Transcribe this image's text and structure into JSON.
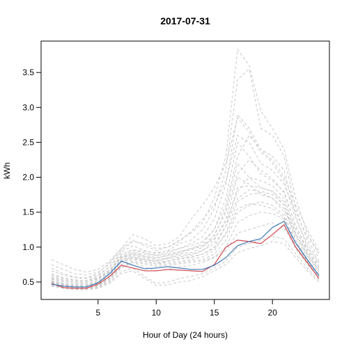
{
  "chart_data": {
    "type": "line",
    "title": "2017-07-31",
    "xlabel": "Hour of Day (24 hours)",
    "ylabel": "kWh",
    "xlim": [
      0.1,
      24.9
    ],
    "ylim": [
      0.25,
      3.95
    ],
    "x_ticks": [
      5,
      10,
      15,
      20
    ],
    "y_ticks": [
      0.5,
      1.0,
      1.5,
      2.0,
      2.5,
      3.0,
      3.5
    ],
    "x_tick_labels": [
      "5",
      "10",
      "15",
      "20"
    ],
    "y_tick_labels": [
      "0.5",
      "1.0",
      "1.5",
      "2.0",
      "2.5",
      "3.0",
      "3.5"
    ],
    "x": [
      1,
      2,
      3,
      4,
      5,
      6,
      7,
      8,
      9,
      10,
      11,
      12,
      13,
      14,
      15,
      16,
      17,
      18,
      19,
      20,
      21,
      22,
      23,
      24
    ],
    "grid": false,
    "background_series_color": "#c8c8c8",
    "background_series": [
      [
        0.7,
        0.62,
        0.57,
        0.56,
        0.62,
        0.78,
        0.98,
        1.1,
        1.02,
        0.95,
        1.0,
        1.1,
        1.2,
        1.35,
        1.7,
        2.3,
        3.83,
        3.6,
        2.95,
        2.7,
        2.4,
        1.7,
        1.2,
        0.9
      ],
      [
        0.62,
        0.56,
        0.53,
        0.52,
        0.58,
        0.72,
        0.93,
        1.02,
        0.95,
        0.9,
        0.95,
        1.05,
        1.1,
        1.25,
        1.55,
        2.1,
        3.4,
        3.55,
        2.7,
        2.6,
        2.3,
        1.55,
        1.1,
        0.85
      ],
      [
        0.58,
        0.53,
        0.5,
        0.5,
        0.55,
        0.68,
        0.88,
        0.95,
        0.92,
        0.88,
        0.92,
        0.98,
        1.05,
        1.15,
        1.4,
        1.9,
        2.9,
        2.7,
        2.4,
        2.3,
        2.1,
        1.45,
        1.0,
        0.78
      ],
      [
        0.55,
        0.5,
        0.48,
        0.48,
        0.52,
        0.65,
        0.85,
        0.92,
        0.88,
        0.85,
        0.88,
        0.92,
        0.98,
        1.05,
        1.25,
        1.7,
        2.5,
        2.3,
        2.05,
        1.95,
        1.8,
        1.3,
        0.95,
        0.72
      ],
      [
        0.52,
        0.48,
        0.46,
        0.46,
        0.5,
        0.62,
        0.82,
        0.9,
        0.86,
        0.82,
        0.85,
        0.9,
        0.92,
        1.0,
        1.15,
        1.55,
        2.2,
        2.0,
        1.85,
        1.8,
        1.65,
        1.2,
        0.9,
        0.68
      ],
      [
        0.5,
        0.46,
        0.44,
        0.44,
        0.48,
        0.6,
        0.8,
        0.88,
        0.84,
        0.8,
        0.83,
        0.86,
        0.88,
        0.95,
        1.1,
        1.4,
        2.0,
        1.9,
        1.75,
        1.7,
        1.55,
        1.15,
        0.86,
        0.65
      ],
      [
        0.48,
        0.45,
        0.43,
        0.43,
        0.46,
        0.58,
        0.78,
        0.85,
        0.82,
        0.78,
        0.8,
        0.83,
        0.85,
        0.9,
        1.0,
        1.3,
        1.85,
        1.88,
        1.85,
        1.8,
        1.6,
        1.1,
        0.82,
        0.62
      ],
      [
        0.47,
        0.44,
        0.42,
        0.42,
        0.45,
        0.55,
        0.75,
        0.82,
        0.8,
        0.76,
        0.78,
        0.8,
        0.82,
        0.86,
        0.95,
        1.2,
        1.65,
        1.75,
        1.78,
        1.7,
        1.5,
        1.05,
        0.8,
        0.6
      ],
      [
        0.46,
        0.43,
        0.41,
        0.41,
        0.44,
        0.54,
        0.72,
        0.8,
        0.78,
        0.74,
        0.76,
        0.78,
        0.8,
        0.82,
        0.9,
        1.1,
        1.5,
        1.6,
        1.65,
        1.6,
        1.45,
        1.0,
        0.78,
        0.58
      ],
      [
        0.45,
        0.42,
        0.4,
        0.4,
        0.43,
        0.52,
        0.7,
        0.78,
        0.76,
        0.72,
        0.74,
        0.76,
        0.78,
        0.8,
        0.86,
        1.0,
        1.35,
        1.45,
        1.5,
        1.48,
        1.4,
        0.98,
        0.76,
        0.56
      ],
      [
        0.82,
        0.75,
        0.68,
        0.64,
        0.68,
        0.8,
        0.98,
        1.18,
        1.12,
        1.02,
        1.05,
        1.15,
        1.4,
        1.6,
        1.85,
        2.2,
        2.85,
        2.65,
        2.35,
        2.25,
        2.0,
        1.6,
        1.25,
        0.95
      ],
      [
        0.75,
        0.68,
        0.62,
        0.6,
        0.64,
        0.76,
        0.95,
        1.08,
        1.05,
        0.98,
        1.0,
        1.08,
        1.22,
        1.4,
        1.6,
        1.95,
        2.6,
        2.5,
        2.2,
        2.1,
        1.9,
        1.5,
        1.15,
        0.92
      ],
      [
        0.66,
        0.6,
        0.56,
        0.55,
        0.6,
        0.72,
        0.9,
        0.96,
        0.94,
        0.92,
        0.94,
        0.98,
        1.02,
        1.08,
        1.25,
        1.6,
        2.3,
        2.6,
        2.4,
        2.2,
        1.95,
        1.4,
        1.05,
        0.8
      ],
      [
        0.6,
        0.55,
        0.52,
        0.52,
        0.56,
        0.68,
        0.86,
        0.92,
        0.9,
        0.88,
        0.9,
        0.94,
        0.98,
        1.02,
        1.18,
        1.5,
        2.05,
        2.25,
        2.1,
        1.98,
        1.78,
        1.3,
        0.98,
        0.75
      ],
      [
        0.54,
        0.5,
        0.48,
        0.48,
        0.52,
        0.64,
        0.8,
        0.86,
        0.82,
        0.8,
        0.84,
        0.88,
        0.9,
        0.95,
        1.05,
        1.3,
        1.7,
        1.82,
        1.8,
        1.75,
        1.6,
        1.18,
        0.88,
        0.66
      ],
      [
        0.49,
        0.45,
        0.43,
        0.43,
        0.46,
        0.56,
        0.72,
        0.78,
        0.72,
        0.66,
        0.68,
        0.72,
        0.74,
        0.78,
        0.85,
        0.95,
        1.2,
        1.25,
        1.3,
        1.35,
        1.28,
        0.98,
        0.75,
        0.57
      ],
      [
        0.46,
        0.42,
        0.4,
        0.4,
        0.42,
        0.5,
        0.65,
        0.7,
        0.58,
        0.48,
        0.5,
        0.55,
        0.58,
        0.62,
        0.7,
        0.8,
        1.0,
        1.05,
        1.1,
        1.15,
        1.12,
        0.9,
        0.7,
        0.52
      ],
      [
        0.44,
        0.41,
        0.39,
        0.39,
        0.41,
        0.48,
        0.62,
        0.66,
        0.55,
        0.45,
        0.46,
        0.5,
        0.52,
        0.58,
        0.66,
        0.75,
        0.92,
        0.98,
        1.02,
        1.08,
        1.05,
        0.85,
        0.66,
        0.5
      ],
      [
        0.56,
        0.52,
        0.5,
        0.5,
        0.54,
        0.66,
        0.84,
        0.9,
        0.86,
        0.84,
        0.88,
        0.92,
        0.96,
        1.02,
        1.12,
        1.36,
        1.8,
        2.0,
        1.95,
        1.88,
        1.7,
        1.25,
        0.92,
        0.7
      ],
      [
        0.51,
        0.47,
        0.45,
        0.45,
        0.49,
        0.6,
        0.78,
        0.84,
        0.8,
        0.76,
        0.8,
        0.84,
        0.86,
        0.9,
        0.98,
        1.18,
        1.55,
        1.62,
        1.6,
        1.55,
        1.42,
        1.05,
        0.8,
        0.6
      ]
    ],
    "series": [
      {
        "color": "#d0525a",
        "values": [
          0.48,
          0.42,
          0.41,
          0.41,
          0.47,
          0.58,
          0.74,
          0.7,
          0.66,
          0.66,
          0.68,
          0.67,
          0.66,
          0.65,
          0.75,
          1.0,
          1.1,
          1.08,
          1.05,
          1.18,
          1.32,
          1.0,
          0.78,
          0.55
        ]
      },
      {
        "color": "#4a7fb7",
        "values": [
          0.47,
          0.44,
          0.43,
          0.43,
          0.49,
          0.62,
          0.8,
          0.74,
          0.69,
          0.7,
          0.72,
          0.7,
          0.68,
          0.68,
          0.74,
          0.85,
          1.02,
          1.08,
          1.12,
          1.28,
          1.37,
          1.06,
          0.82,
          0.59
        ]
      }
    ]
  }
}
